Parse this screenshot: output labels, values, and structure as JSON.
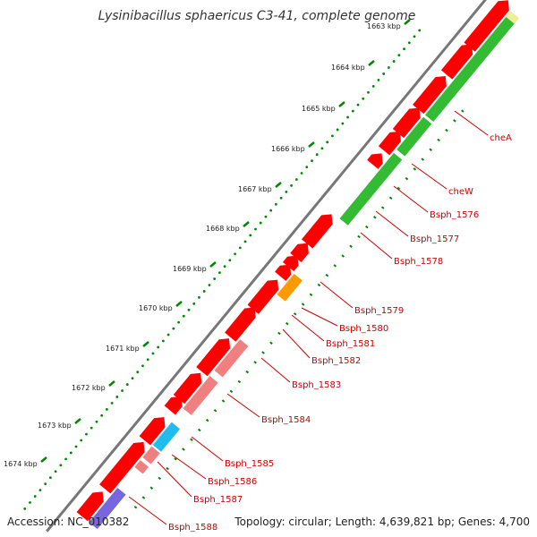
{
  "title": "Lysinibacillus sphaericus C3-41, complete genome",
  "footer": {
    "accession": "Accession: NC_010382",
    "summary": "Topology: circular; Length: 4,639,821 bp; Genes: 4,700"
  },
  "ticks": [
    {
      "label": "1663 kbp"
    },
    {
      "label": "1664 kbp"
    },
    {
      "label": "1665 kbp"
    },
    {
      "label": "1666 kbp"
    },
    {
      "label": "1667 kbp"
    },
    {
      "label": "1668 kbp"
    },
    {
      "label": "1669 kbp"
    },
    {
      "label": "1670 kbp"
    },
    {
      "label": "1671 kbp"
    },
    {
      "label": "1672 kbp"
    },
    {
      "label": "1673 kbp"
    },
    {
      "label": "1674 kbp"
    }
  ],
  "gene_labels": [
    {
      "text": "cheA"
    },
    {
      "text": "cheW"
    },
    {
      "text": "Bsph_1576"
    },
    {
      "text": "Bsph_1577"
    },
    {
      "text": "Bsph_1578"
    },
    {
      "text": "Bsph_1579"
    },
    {
      "text": "Bsph_1580"
    },
    {
      "text": "Bsph_1581"
    },
    {
      "text": "Bsph_1582"
    },
    {
      "text": "Bsph_1583"
    },
    {
      "text": "Bsph_1584"
    },
    {
      "text": "Bsph_1585"
    },
    {
      "text": "Bsph_1586"
    },
    {
      "text": "Bsph_1587"
    },
    {
      "text": "Bsph_1588"
    }
  ],
  "colors": {
    "backbone": "#777777",
    "cds": "#ff0000",
    "green_track": "#33bb33",
    "salmon": "#f08080",
    "orange": "#ff9900",
    "cyan": "#22bbee",
    "purple": "#7766dd",
    "yellow": "#eeee99",
    "tick": "#008800",
    "label": "#cc0000"
  }
}
